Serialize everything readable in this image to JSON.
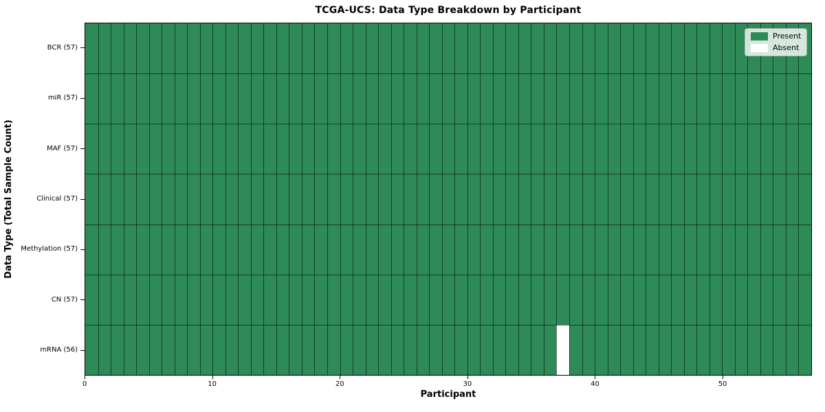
{
  "chart_data": {
    "type": "heatmap",
    "title": "TCGA-UCS: Data Type Breakdown by Participant",
    "xlabel": "Participant",
    "ylabel": "Data Type (Total Sample Count)",
    "x_ticks": [
      0,
      10,
      20,
      30,
      40,
      50
    ],
    "x_range": [
      0,
      57
    ],
    "n_participants": 57,
    "rows": [
      {
        "label": "BCR (57)",
        "present_count": 57,
        "absent_participants": []
      },
      {
        "label": "miR (57)",
        "present_count": 57,
        "absent_participants": []
      },
      {
        "label": "MAF (57)",
        "present_count": 57,
        "absent_participants": []
      },
      {
        "label": "Clinical (57)",
        "present_count": 57,
        "absent_participants": []
      },
      {
        "label": "Methylation (57)",
        "present_count": 57,
        "absent_participants": []
      },
      {
        "label": "CN (57)",
        "present_count": 57,
        "absent_participants": []
      },
      {
        "label": "mRNA (56)",
        "present_count": 56,
        "absent_participants": [
          37
        ]
      }
    ],
    "legend": [
      {
        "label": "Present",
        "color": "#2E8B57"
      },
      {
        "label": "Absent",
        "color": "#FFFFFF"
      }
    ],
    "legend_position": "upper right",
    "grid": true,
    "colors": {
      "present": "#2E8B57",
      "absent": "#FFFFFF",
      "cell_edge": "#000000",
      "axis": "#000000",
      "background": "#FFFFFF"
    }
  }
}
